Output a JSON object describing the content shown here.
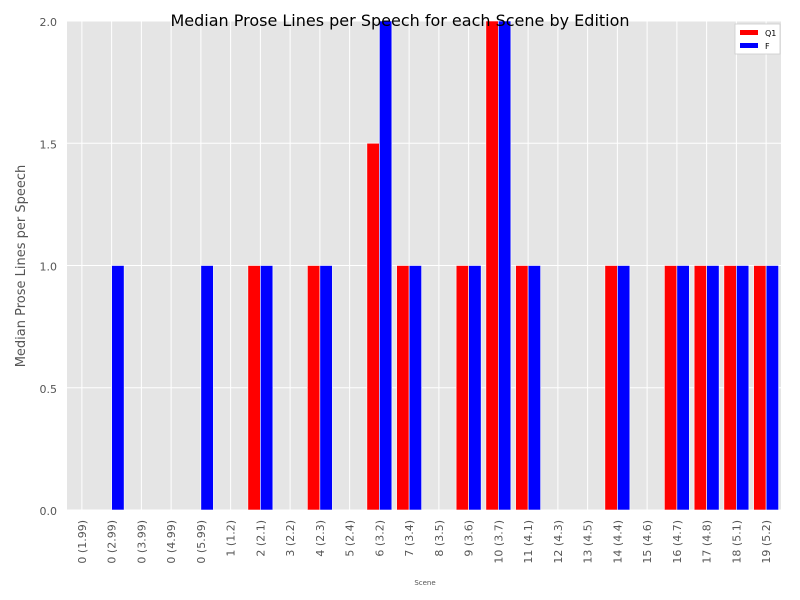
{
  "chart_data": {
    "type": "bar",
    "title": "Median Prose Lines per Speech for each Scene by Edition",
    "xlabel": "Scene",
    "ylabel": "Median Prose Lines per Speech",
    "ylim": [
      0,
      2.0
    ],
    "yticks": [
      "0.0",
      "0.5",
      "1.0",
      "1.5",
      "2.0"
    ],
    "grid": true,
    "legend_position": "top-right",
    "categories": [
      "0 (1.99)",
      "0 (2.99)",
      "0 (3.99)",
      "0 (4.99)",
      "0 (5.99)",
      "1 (1.2)",
      "2 (2.1)",
      "3 (2.2)",
      "4 (2.3)",
      "5 (2.4)",
      "6 (3.2)",
      "7 (3.4)",
      "8 (3.5)",
      "9 (3.6)",
      "10 (3.7)",
      "11 (4.1)",
      "12 (4.3)",
      "13 (4.5)",
      "14 (4.4)",
      "15 (4.6)",
      "16 (4.7)",
      "17 (4.8)",
      "18 (5.1)",
      "19 (5.2)"
    ],
    "series": [
      {
        "name": "Q1",
        "color": "#ff0000",
        "values": [
          0,
          0,
          0,
          0,
          0,
          0,
          1,
          0,
          1,
          0,
          1.5,
          1,
          0,
          1,
          2,
          1,
          0,
          0,
          1,
          0,
          1,
          1,
          1,
          1
        ]
      },
      {
        "name": "F",
        "color": "#0000ff",
        "values": [
          0,
          1,
          0,
          0,
          1,
          0,
          1,
          0,
          1,
          0,
          2,
          1,
          0,
          1,
          2,
          1,
          0,
          0,
          1,
          0,
          1,
          1,
          1,
          1
        ]
      }
    ],
    "colors": {
      "plot_background": "#e5e5e5",
      "grid": "#ffffff"
    }
  }
}
